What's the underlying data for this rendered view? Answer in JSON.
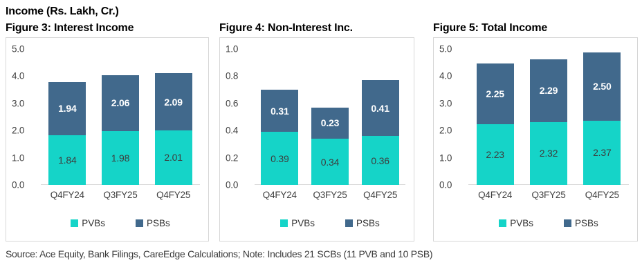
{
  "page": {
    "title": "Income (Rs. Lakh, Cr.)",
    "source": "Source: Ace Equity, Bank Filings, CareEdge Calculations; Note: Includes 21 SCBs (11 PVB and 10 PSB)"
  },
  "colors": {
    "pvb": "#15d4c8",
    "psb": "#41698c",
    "axis_text": "#404040",
    "panel_border": "#d6d6d6"
  },
  "legend": {
    "pvb_label": "PVBs",
    "psb_label": "PSBs"
  },
  "chart_data": [
    {
      "type": "bar",
      "stacked": true,
      "title": "Figure 3: Interest Income",
      "categories": [
        "Q4FY24",
        "Q3FY25",
        "Q4FY25"
      ],
      "series": [
        {
          "name": "PVBs",
          "color": "#15d4c8",
          "values": [
            1.84,
            1.98,
            2.01
          ]
        },
        {
          "name": "PSBs",
          "color": "#41698c",
          "values": [
            1.94,
            2.06,
            2.09
          ]
        }
      ],
      "ylim": [
        0,
        5.0
      ],
      "yticks": [
        "0.0",
        "1.0",
        "2.0",
        "3.0",
        "4.0",
        "5.0"
      ],
      "grid": false,
      "legend_position": "bottom"
    },
    {
      "type": "bar",
      "stacked": true,
      "title": "Figure 4: Non-Interest Inc.",
      "categories": [
        "Q4FY24",
        "Q3FY25",
        "Q4FY25"
      ],
      "series": [
        {
          "name": "PVBs",
          "color": "#15d4c8",
          "values": [
            0.39,
            0.34,
            0.36
          ]
        },
        {
          "name": "PSBs",
          "color": "#41698c",
          "values": [
            0.31,
            0.23,
            0.41
          ]
        }
      ],
      "ylim": [
        0,
        1.0
      ],
      "yticks": [
        "0.0",
        "0.2",
        "0.4",
        "0.6",
        "0.8",
        "1.0"
      ],
      "grid": false,
      "legend_position": "bottom"
    },
    {
      "type": "bar",
      "stacked": true,
      "title": "Figure 5: Total Income",
      "categories": [
        "Q4FY24",
        "Q3FY25",
        "Q4FY25"
      ],
      "series": [
        {
          "name": "PVBs",
          "color": "#15d4c8",
          "values": [
            2.23,
            2.32,
            2.37
          ]
        },
        {
          "name": "PSBs",
          "color": "#41698c",
          "values": [
            2.25,
            2.29,
            2.5
          ]
        }
      ],
      "ylim": [
        0,
        5.0
      ],
      "yticks": [
        "0.0",
        "1.0",
        "2.0",
        "3.0",
        "4.0",
        "5.0"
      ],
      "grid": false,
      "legend_position": "bottom"
    }
  ]
}
